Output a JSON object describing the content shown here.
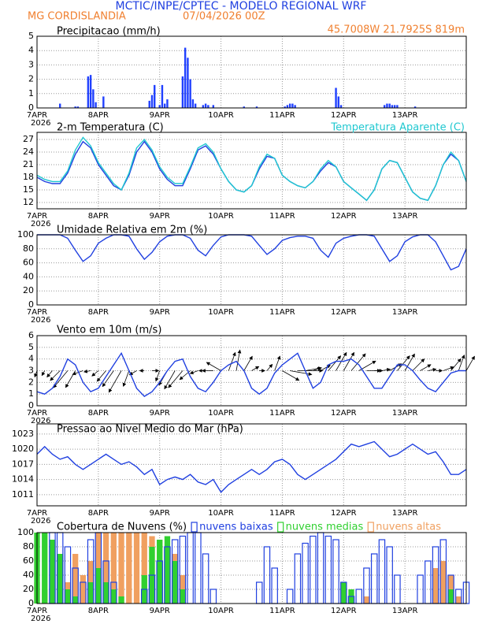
{
  "header": {
    "title": "MCTIC/INPE/CPTEC - MODELO REGIONAL WRF",
    "station": "MG CORDISLANDIA",
    "date": "07/04/2026 00Z",
    "coords": "45.7008W 21.7925S 819m"
  },
  "chart_data": [
    {
      "type": "bar",
      "title": "Precipitacao (mm/h)",
      "color": "#2040ff",
      "year": "2026",
      "x": [
        9,
        15,
        16,
        20,
        21,
        22,
        23,
        26,
        44,
        45,
        46,
        48,
        49,
        50,
        51,
        57,
        58,
        59,
        60,
        61,
        62,
        65,
        66,
        67,
        69,
        81,
        86,
        97,
        98,
        99,
        100,
        101,
        117,
        118,
        119,
        136,
        137,
        138,
        139,
        140,
        141,
        148
      ],
      "values": [
        0.3,
        0.1,
        0.1,
        2.2,
        2.3,
        1.3,
        0.4,
        0.8,
        0.5,
        0.9,
        1.6,
        0.2,
        1.6,
        0.3,
        0.6,
        2.2,
        4.2,
        3.5,
        2.0,
        0.6,
        0.3,
        0.2,
        0.3,
        0.2,
        0.2,
        0.1,
        0.1,
        0.1,
        0.2,
        0.3,
        0.3,
        0.2,
        1.4,
        0.8,
        0.2,
        0.2,
        0.3,
        0.3,
        0.2,
        0.2,
        0.2,
        0.1
      ],
      "xlim": [
        0,
        168
      ],
      "xticks": [
        {
          "value": 0,
          "label": "7APR"
        },
        {
          "value": 24,
          "label": "8APR"
        },
        {
          "value": 48,
          "label": "9APR"
        },
        {
          "value": 72,
          "label": "10APR"
        },
        {
          "value": 96,
          "label": "11APR"
        },
        {
          "value": 120,
          "label": "12APR"
        },
        {
          "value": 144,
          "label": "13APR"
        }
      ],
      "ylim": [
        0,
        5
      ],
      "yticks": [
        0,
        1,
        2,
        3,
        4,
        5
      ],
      "grid": true
    },
    {
      "type": "line",
      "title": "2-m Temperatura (C)",
      "year": "2026",
      "x": [
        0,
        3,
        6,
        9,
        12,
        15,
        18,
        21,
        24,
        27,
        30,
        33,
        36,
        39,
        42,
        45,
        48,
        51,
        54,
        57,
        60,
        63,
        66,
        69,
        72,
        75,
        78,
        81,
        84,
        87,
        90,
        93,
        96,
        99,
        102,
        105,
        108,
        111,
        114,
        117,
        120,
        123,
        126,
        129,
        132,
        135,
        138,
        141,
        144,
        147,
        150,
        153,
        156,
        159,
        162,
        165,
        168
      ],
      "series": [
        {
          "color": "#2040e0",
          "values": [
            18,
            17,
            16.5,
            16.5,
            19,
            23.5,
            26.5,
            25,
            21,
            18.5,
            16,
            15,
            18.5,
            24,
            26.5,
            24,
            20,
            17.5,
            16,
            16,
            20,
            24.5,
            25.5,
            23.5,
            20,
            17,
            15,
            14.5,
            16,
            20,
            23,
            22.5,
            18.5,
            17,
            16,
            15.5,
            17,
            19.5,
            21.5,
            20.5,
            17,
            15.5,
            14,
            12.5,
            15,
            20,
            22,
            21.5,
            18,
            14.5,
            13,
            12.5,
            16,
            21,
            23.5,
            22,
            17
          ]
        },
        {
          "name": "Temperatura Aparente (C)",
          "color": "#20c8d0",
          "values": [
            18.5,
            17.5,
            17,
            17,
            19.5,
            24.5,
            27.5,
            25.5,
            21.5,
            19,
            16.5,
            15,
            19,
            25,
            27,
            24.5,
            20.5,
            18,
            16.5,
            16.5,
            20.5,
            25,
            26,
            24,
            20,
            17,
            15,
            14.5,
            16,
            20.5,
            23.5,
            22.5,
            18.5,
            17,
            16,
            15.5,
            17,
            20,
            22,
            20.5,
            17,
            15.5,
            14,
            12.5,
            15,
            20,
            22,
            21.5,
            18,
            14.5,
            13,
            12.5,
            16,
            21,
            24,
            22,
            17
          ]
        }
      ],
      "xlim": [
        0,
        168
      ],
      "xticks": [
        {
          "value": 0,
          "label": "7APR"
        },
        {
          "value": 24,
          "label": "8APR"
        },
        {
          "value": 48,
          "label": "9APR"
        },
        {
          "value": 72,
          "label": "10APR"
        },
        {
          "value": 96,
          "label": "11APR"
        },
        {
          "value": 120,
          "label": "12APR"
        },
        {
          "value": 144,
          "label": "13APR"
        }
      ],
      "ylim": [
        10.5,
        28.7
      ],
      "yticks": [
        12,
        15,
        18,
        21,
        24,
        27
      ],
      "grid": true
    },
    {
      "type": "line",
      "title": "Umidade Relativa em 2m (%)",
      "year": "2026",
      "x": [
        0,
        3,
        6,
        9,
        12,
        15,
        18,
        21,
        24,
        27,
        30,
        33,
        36,
        39,
        42,
        45,
        48,
        51,
        54,
        57,
        60,
        63,
        66,
        69,
        72,
        75,
        78,
        81,
        84,
        87,
        90,
        93,
        96,
        99,
        102,
        105,
        108,
        111,
        114,
        117,
        120,
        123,
        126,
        129,
        132,
        135,
        138,
        141,
        144,
        147,
        150,
        153,
        156,
        159,
        162,
        165,
        168
      ],
      "series": [
        {
          "color": "#2040e0",
          "values": [
            100,
            100,
            100,
            100,
            95,
            78,
            62,
            70,
            88,
            95,
            100,
            100,
            98,
            80,
            65,
            75,
            90,
            98,
            100,
            100,
            95,
            78,
            70,
            85,
            97,
            100,
            100,
            100,
            98,
            85,
            72,
            80,
            92,
            96,
            98,
            98,
            95,
            78,
            68,
            88,
            95,
            98,
            100,
            100,
            98,
            80,
            62,
            70,
            90,
            97,
            100,
            100,
            90,
            70,
            50,
            55,
            80
          ]
        }
      ],
      "xlim": [
        0,
        168
      ],
      "xticks": [
        {
          "value": 0,
          "label": "7APR"
        },
        {
          "value": 24,
          "label": "8APR"
        },
        {
          "value": 48,
          "label": "9APR"
        },
        {
          "value": 72,
          "label": "10APR"
        },
        {
          "value": 96,
          "label": "11APR"
        },
        {
          "value": 120,
          "label": "12APR"
        },
        {
          "value": 144,
          "label": "13APR"
        }
      ],
      "ylim": [
        0,
        100
      ],
      "yticks": [
        0,
        20,
        40,
        60,
        80,
        100
      ],
      "grid": true
    },
    {
      "type": "line",
      "title": "Vento em 10m (m/s)",
      "year": "2026",
      "x": [
        0,
        3,
        6,
        9,
        12,
        15,
        18,
        21,
        24,
        27,
        30,
        33,
        36,
        39,
        42,
        45,
        48,
        51,
        54,
        57,
        60,
        63,
        66,
        69,
        72,
        75,
        78,
        81,
        84,
        87,
        90,
        93,
        96,
        99,
        102,
        105,
        108,
        111,
        114,
        117,
        120,
        123,
        126,
        129,
        132,
        135,
        138,
        141,
        144,
        147,
        150,
        153,
        156,
        159,
        162,
        165,
        168
      ],
      "series": [
        {
          "color": "#2040e0",
          "values": [
            1.2,
            1,
            1.5,
            2.5,
            4,
            3.5,
            2,
            1.2,
            1.5,
            2.5,
            3.5,
            4.5,
            3,
            1.5,
            0.8,
            1.2,
            2,
            3,
            3.8,
            4,
            2.5,
            1.5,
            1.2,
            2,
            3,
            3.5,
            3.8,
            3,
            1.5,
            1,
            1.5,
            2.8,
            3.5,
            4,
            4.5,
            3,
            1.5,
            2,
            3.5,
            3.8,
            3.8,
            4,
            3.5,
            2.5,
            1.5,
            1.5,
            2.5,
            3.5,
            3.5,
            3,
            2.2,
            1.5,
            1.2,
            2,
            2.8,
            3,
            3
          ],
          "directions": [
            200,
            210,
            220,
            225,
            220,
            210,
            250,
            260,
            230,
            220,
            215,
            210,
            200,
            240,
            270,
            90,
            200,
            210,
            210,
            220,
            230,
            250,
            270,
            270,
            300,
            20,
            10,
            30,
            60,
            90,
            40,
            20,
            120,
            100,
            90,
            80,
            70,
            60,
            40,
            30,
            30,
            40,
            60,
            90,
            90,
            80,
            60,
            40,
            30,
            45,
            60,
            80,
            90,
            70,
            40,
            20,
            30
          ]
        }
      ],
      "xlim": [
        0,
        168
      ],
      "xticks": [
        {
          "value": 0,
          "label": "7APR"
        },
        {
          "value": 24,
          "label": "8APR"
        },
        {
          "value": 48,
          "label": "9APR"
        },
        {
          "value": 72,
          "label": "10APR"
        },
        {
          "value": 96,
          "label": "11APR"
        },
        {
          "value": 120,
          "label": "12APR"
        },
        {
          "value": 144,
          "label": "13APR"
        }
      ],
      "ylim": [
        0,
        6
      ],
      "yticks": [
        0,
        1,
        2,
        3,
        4,
        5,
        6
      ],
      "grid": true
    },
    {
      "type": "line",
      "title": "Pressao ao Nivel Medio do Mar (hPa)",
      "year": "2026",
      "x": [
        0,
        3,
        6,
        9,
        12,
        15,
        18,
        21,
        24,
        27,
        30,
        33,
        36,
        39,
        42,
        45,
        48,
        51,
        54,
        57,
        60,
        63,
        66,
        69,
        72,
        75,
        78,
        81,
        84,
        87,
        90,
        93,
        96,
        99,
        102,
        105,
        108,
        111,
        114,
        117,
        120,
        123,
        126,
        129,
        132,
        135,
        138,
        141,
        144,
        147,
        150,
        153,
        156,
        159,
        162,
        165,
        168
      ],
      "series": [
        {
          "color": "#2040e0",
          "values": [
            1019,
            1020.5,
            1019,
            1018,
            1018.5,
            1017,
            1016,
            1017,
            1018,
            1019,
            1018,
            1017,
            1017.5,
            1016.5,
            1015,
            1016,
            1013,
            1014,
            1014.5,
            1014,
            1015,
            1013.5,
            1013,
            1014,
            1011.5,
            1013,
            1014,
            1015,
            1016,
            1015,
            1016,
            1017.5,
            1018,
            1017,
            1015,
            1014,
            1015,
            1016,
            1017,
            1018,
            1019.5,
            1021,
            1020.5,
            1021,
            1021.5,
            1020,
            1018.5,
            1019,
            1020,
            1021,
            1020,
            1019,
            1019.5,
            1017.5,
            1015,
            1015,
            1016
          ]
        }
      ],
      "xlim": [
        0,
        168
      ],
      "xticks": [
        {
          "value": 0,
          "label": "7APR"
        },
        {
          "value": 24,
          "label": "8APR"
        },
        {
          "value": 48,
          "label": "9APR"
        },
        {
          "value": 72,
          "label": "10APR"
        },
        {
          "value": 96,
          "label": "11APR"
        },
        {
          "value": 120,
          "label": "12APR"
        },
        {
          "value": 144,
          "label": "13APR"
        }
      ],
      "ylim": [
        1008.8,
        1025
      ],
      "yticks": [
        1011,
        1014,
        1017,
        1020,
        1023
      ],
      "grid": true
    },
    {
      "type": "bar",
      "title": "Cobertura de Nuvens (%)",
      "year": "2026",
      "x": [
        0,
        3,
        6,
        9,
        12,
        15,
        18,
        21,
        24,
        27,
        30,
        33,
        36,
        39,
        42,
        45,
        48,
        51,
        54,
        57,
        60,
        63,
        66,
        69,
        72,
        75,
        78,
        81,
        84,
        87,
        90,
        93,
        96,
        99,
        102,
        105,
        108,
        111,
        114,
        117,
        120,
        123,
        126,
        129,
        132,
        135,
        138,
        141,
        144,
        147,
        150,
        153,
        156,
        159,
        162,
        165,
        168
      ],
      "series": [
        {
          "name": "nuvens baixas",
          "color": "#2040e0",
          "style": "outline",
          "values": [
            0,
            0,
            100,
            100,
            80,
            50,
            30,
            90,
            100,
            60,
            30,
            0,
            0,
            0,
            20,
            40,
            60,
            80,
            90,
            95,
            100,
            100,
            70,
            20,
            0,
            0,
            0,
            0,
            0,
            30,
            80,
            50,
            0,
            20,
            70,
            85,
            95,
            100,
            95,
            90,
            30,
            10,
            20,
            50,
            70,
            90,
            80,
            40,
            0,
            0,
            40,
            60,
            80,
            90,
            40,
            20,
            30
          ]
        },
        {
          "name": "nuvens medias",
          "color": "#30d030",
          "style": "filled",
          "values": [
            100,
            100,
            90,
            70,
            20,
            10,
            0,
            30,
            50,
            30,
            20,
            10,
            0,
            0,
            40,
            80,
            90,
            95,
            60,
            20,
            0,
            0,
            0,
            0,
            0,
            0,
            0,
            0,
            0,
            0,
            0,
            0,
            0,
            0,
            0,
            0,
            0,
            0,
            0,
            0,
            30,
            20,
            0,
            0,
            0,
            0,
            0,
            0,
            0,
            0,
            0,
            0,
            0,
            0,
            20,
            0,
            0
          ]
        },
        {
          "name": "nuvens altas",
          "color": "#f0a060",
          "style": "filled",
          "values": [
            30,
            20,
            10,
            10,
            30,
            70,
            40,
            60,
            100,
            100,
            100,
            100,
            100,
            100,
            100,
            95,
            90,
            80,
            70,
            40,
            0,
            0,
            0,
            0,
            0,
            0,
            0,
            0,
            0,
            0,
            0,
            0,
            0,
            0,
            0,
            0,
            0,
            0,
            0,
            0,
            0,
            0,
            0,
            10,
            0,
            0,
            0,
            0,
            0,
            0,
            0,
            0,
            50,
            60,
            40,
            10,
            0
          ]
        }
      ],
      "xlim": [
        0,
        168
      ],
      "xticks": [
        {
          "value": 0,
          "label": "7APR"
        },
        {
          "value": 24,
          "label": "8APR"
        },
        {
          "value": 48,
          "label": "9APR"
        },
        {
          "value": 72,
          "label": "10APR"
        },
        {
          "value": 96,
          "label": "11APR"
        },
        {
          "value": 120,
          "label": "12APR"
        },
        {
          "value": 144,
          "label": "13APR"
        }
      ],
      "ylim": [
        0,
        100
      ],
      "yticks": [
        0,
        20,
        40,
        60,
        80,
        100
      ],
      "grid": true
    }
  ]
}
